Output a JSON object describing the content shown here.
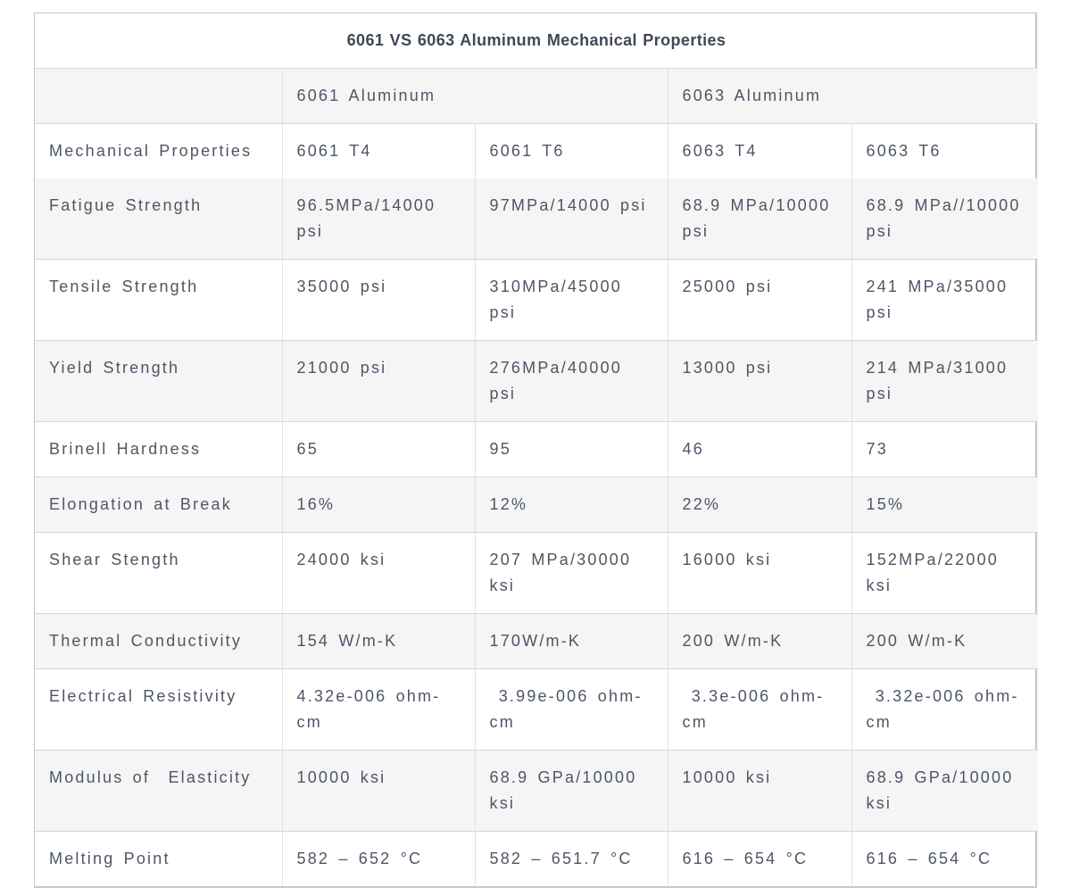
{
  "table": {
    "title": "6061 VS 6063 Aluminum Mechanical Properties",
    "group_header": {
      "blank": "",
      "group_6061": "6061 Aluminum",
      "group_6063": "6063 Aluminum"
    },
    "column_headers": {
      "property": "Mechanical Properties",
      "col_6061_t4": "6061 T4",
      "col_6061_t6": "6061 T6",
      "col_6063_t4": "6063 T4",
      "col_6063_t6": "6063 T6"
    },
    "rows": [
      {
        "property": "Fatigue Strength",
        "values": [
          "96.5MPa/14000 psi",
          "97MPa/14000 psi",
          "68.9 MPa/10000 psi",
          "68.9 MPa//10000 psi"
        ]
      },
      {
        "property": "Tensile Strength",
        "values": [
          "35000 psi",
          "310MPa/45000 psi",
          "25000 psi",
          "241 MPa/35000 psi"
        ]
      },
      {
        "property": "Yield Strength",
        "values": [
          "21000 psi",
          "276MPa/40000 psi",
          "13000 psi",
          "214 MPa/31000 psi"
        ]
      },
      {
        "property": "Brinell Hardness",
        "values": [
          "65",
          "95",
          "46",
          "73"
        ]
      },
      {
        "property": "Elongation at Break",
        "values": [
          "16%",
          "12%",
          "22%",
          "15%"
        ]
      },
      {
        "property": "Shear Stength",
        "values": [
          "24000 ksi",
          "207 MPa/30000 ksi",
          "16000 ksi",
          "152MPa/22000 ksi"
        ]
      },
      {
        "property": "Thermal Conductivity",
        "values": [
          "154 W/m-K",
          "170W/m-K",
          "200 W/m-K",
          "200 W/m-K"
        ]
      },
      {
        "property": "Electrical Resistivity",
        "values": [
          "4.32e-006 ohm-cm",
          " 3.99e-006 ohm-cm",
          " 3.3e-006 ohm-cm",
          " 3.32e-006 ohm-cm"
        ]
      },
      {
        "property": "Modulus of  Elasticity",
        "values": [
          "10000 ksi",
          "68.9 GPa/10000 ksi",
          "10000 ksi",
          "68.9 GPa/10000 ksi"
        ]
      },
      {
        "property": "Melting Point",
        "values": [
          "582 – 652 °C",
          "582 – 651.7 °C",
          "616 – 654 °C",
          "616 – 654 °C"
        ]
      }
    ]
  },
  "colors": {
    "text": "#4d5666",
    "title_text": "#3f4858",
    "row_stripe": "#f5f5f6",
    "border_inner_h": "#d6d6d6",
    "border_inner_v": "#e2e2e2",
    "border_outer": "#c5c5c5",
    "border_outer_bottom": "#c8c8c8",
    "page_bg": "#ffffff"
  }
}
